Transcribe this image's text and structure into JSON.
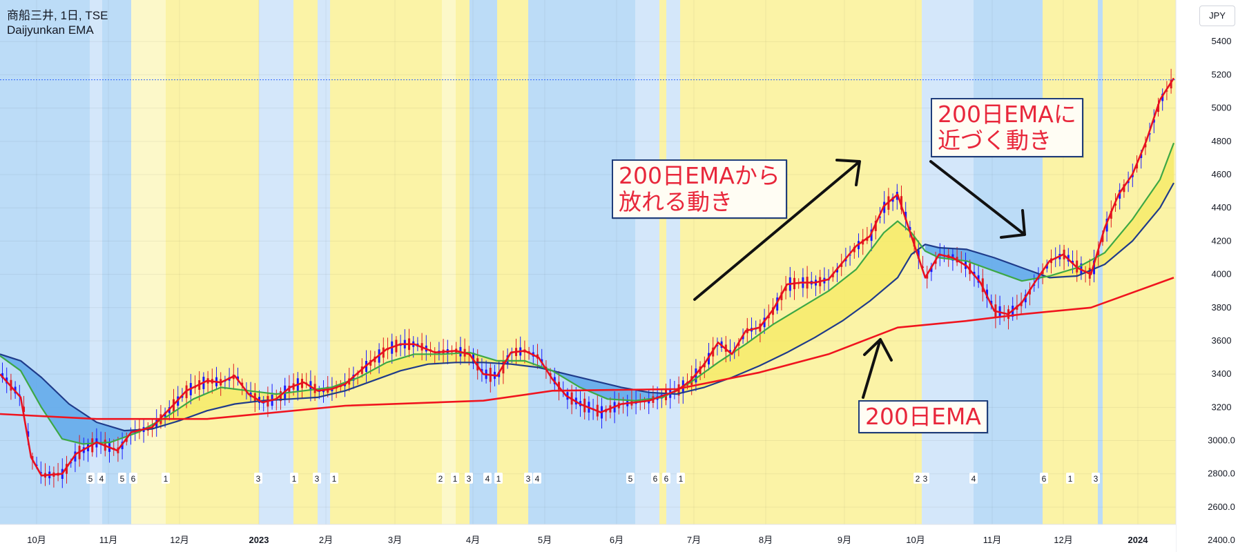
{
  "legend": {
    "title": "商船三井, 1日, TSE",
    "indicator": "Daijyunkan EMA"
  },
  "currency_button": "JPY",
  "annotations": {
    "callout_1": "200日EMAから\n放れる動き",
    "callout_2": "200日EMAに\n近づく動き",
    "callout_3": "200日EMA"
  },
  "chart_data": {
    "type": "line",
    "price_axis": {
      "ticks": [
        "5400",
        "5200",
        "5000",
        "4800",
        "4600",
        "4400",
        "4200",
        "4000",
        "3800",
        "3600",
        "3400",
        "3200",
        "3000.0",
        "2800.0",
        "2600.0",
        "2400.0"
      ],
      "range": [
        2330,
        5650
      ],
      "last_price": 5170
    },
    "time_axis": {
      "ticks": [
        "10月",
        "11月",
        "12月",
        "2023",
        "2月",
        "3月",
        "4月",
        "5月",
        "6月",
        "7月",
        "8月",
        "9月",
        "10月",
        "11月",
        "12月",
        "2024"
      ]
    },
    "stage_labels": [
      "5",
      "4",
      "5",
      "6",
      "1",
      "3",
      "1",
      "3",
      "1",
      "2",
      "1",
      "3",
      "4",
      "1",
      "3",
      "4",
      "5",
      "6",
      "6",
      "1",
      "2",
      "3",
      "4",
      "6",
      "1",
      "3"
    ],
    "series": [
      {
        "name": "EMA200",
        "color": "#f0141e",
        "points": [
          [
            0,
            3160
          ],
          [
            140,
            3130
          ],
          [
            300,
            3130
          ],
          [
            500,
            3210
          ],
          [
            700,
            3240
          ],
          [
            800,
            3300
          ],
          [
            980,
            3310
          ],
          [
            1100,
            3410
          ],
          [
            1200,
            3520
          ],
          [
            1300,
            3680
          ],
          [
            1400,
            3720
          ],
          [
            1480,
            3760
          ],
          [
            1580,
            3800
          ],
          [
            1700,
            3980
          ]
        ]
      },
      {
        "name": "EMA5",
        "color": "#e8101f",
        "points": [
          [
            0,
            3400
          ],
          [
            30,
            3260
          ],
          [
            45,
            2900
          ],
          [
            60,
            2790
          ],
          [
            90,
            2800
          ],
          [
            110,
            2920
          ],
          [
            140,
            2990
          ],
          [
            170,
            2940
          ],
          [
            190,
            3050
          ],
          [
            220,
            3080
          ],
          [
            250,
            3210
          ],
          [
            270,
            3300
          ],
          [
            300,
            3360
          ],
          [
            320,
            3350
          ],
          [
            340,
            3390
          ],
          [
            360,
            3280
          ],
          [
            380,
            3230
          ],
          [
            400,
            3250
          ],
          [
            420,
            3320
          ],
          [
            440,
            3350
          ],
          [
            460,
            3300
          ],
          [
            480,
            3310
          ],
          [
            500,
            3340
          ],
          [
            530,
            3450
          ],
          [
            560,
            3550
          ],
          [
            580,
            3580
          ],
          [
            600,
            3580
          ],
          [
            630,
            3530
          ],
          [
            660,
            3540
          ],
          [
            680,
            3520
          ],
          [
            700,
            3400
          ],
          [
            720,
            3390
          ],
          [
            740,
            3530
          ],
          [
            760,
            3540
          ],
          [
            780,
            3500
          ],
          [
            800,
            3370
          ],
          [
            820,
            3270
          ],
          [
            840,
            3220
          ],
          [
            870,
            3170
          ],
          [
            900,
            3220
          ],
          [
            940,
            3240
          ],
          [
            980,
            3300
          ],
          [
            1000,
            3360
          ],
          [
            1020,
            3460
          ],
          [
            1040,
            3590
          ],
          [
            1060,
            3520
          ],
          [
            1080,
            3660
          ],
          [
            1100,
            3680
          ],
          [
            1120,
            3790
          ],
          [
            1140,
            3940
          ],
          [
            1160,
            3950
          ],
          [
            1180,
            3950
          ],
          [
            1200,
            3970
          ],
          [
            1220,
            4070
          ],
          [
            1240,
            4170
          ],
          [
            1260,
            4230
          ],
          [
            1280,
            4410
          ],
          [
            1300,
            4480
          ],
          [
            1320,
            4230
          ],
          [
            1340,
            3980
          ],
          [
            1360,
            4120
          ],
          [
            1380,
            4100
          ],
          [
            1400,
            4050
          ],
          [
            1420,
            3950
          ],
          [
            1440,
            3780
          ],
          [
            1460,
            3760
          ],
          [
            1480,
            3830
          ],
          [
            1500,
            3960
          ],
          [
            1520,
            4080
          ],
          [
            1540,
            4120
          ],
          [
            1560,
            4040
          ],
          [
            1580,
            4000
          ],
          [
            1600,
            4280
          ],
          [
            1620,
            4480
          ],
          [
            1640,
            4600
          ],
          [
            1660,
            4800
          ],
          [
            1680,
            5050
          ],
          [
            1700,
            5180
          ]
        ]
      },
      {
        "name": "EMA20",
        "color": "#3da845",
        "points": [
          [
            0,
            3510
          ],
          [
            30,
            3420
          ],
          [
            60,
            3200
          ],
          [
            90,
            3010
          ],
          [
            120,
            2980
          ],
          [
            160,
            2990
          ],
          [
            200,
            3050
          ],
          [
            240,
            3140
          ],
          [
            280,
            3250
          ],
          [
            320,
            3320
          ],
          [
            360,
            3300
          ],
          [
            400,
            3280
          ],
          [
            440,
            3300
          ],
          [
            480,
            3320
          ],
          [
            520,
            3380
          ],
          [
            560,
            3470
          ],
          [
            600,
            3520
          ],
          [
            640,
            3520
          ],
          [
            680,
            3530
          ],
          [
            720,
            3480
          ],
          [
            760,
            3480
          ],
          [
            800,
            3420
          ],
          [
            840,
            3320
          ],
          [
            880,
            3250
          ],
          [
            920,
            3240
          ],
          [
            960,
            3260
          ],
          [
            1000,
            3350
          ],
          [
            1040,
            3470
          ],
          [
            1080,
            3580
          ],
          [
            1120,
            3700
          ],
          [
            1160,
            3800
          ],
          [
            1200,
            3900
          ],
          [
            1240,
            4030
          ],
          [
            1280,
            4250
          ],
          [
            1300,
            4320
          ],
          [
            1320,
            4250
          ],
          [
            1340,
            4140
          ],
          [
            1360,
            4100
          ],
          [
            1400,
            4080
          ],
          [
            1440,
            4020
          ],
          [
            1480,
            3960
          ],
          [
            1520,
            3990
          ],
          [
            1560,
            4040
          ],
          [
            1600,
            4130
          ],
          [
            1640,
            4330
          ],
          [
            1680,
            4570
          ],
          [
            1700,
            4790
          ]
        ]
      },
      {
        "name": "EMA60",
        "color": "#1f3b8a",
        "points": [
          [
            0,
            3520
          ],
          [
            30,
            3480
          ],
          [
            60,
            3380
          ],
          [
            100,
            3220
          ],
          [
            140,
            3110
          ],
          [
            180,
            3060
          ],
          [
            220,
            3070
          ],
          [
            260,
            3120
          ],
          [
            300,
            3180
          ],
          [
            340,
            3220
          ],
          [
            380,
            3240
          ],
          [
            420,
            3250
          ],
          [
            460,
            3260
          ],
          [
            500,
            3300
          ],
          [
            540,
            3360
          ],
          [
            580,
            3420
          ],
          [
            620,
            3460
          ],
          [
            660,
            3470
          ],
          [
            700,
            3470
          ],
          [
            740,
            3460
          ],
          [
            780,
            3440
          ],
          [
            820,
            3400
          ],
          [
            860,
            3360
          ],
          [
            900,
            3320
          ],
          [
            940,
            3290
          ],
          [
            980,
            3280
          ],
          [
            1020,
            3320
          ],
          [
            1060,
            3380
          ],
          [
            1100,
            3450
          ],
          [
            1140,
            3530
          ],
          [
            1180,
            3620
          ],
          [
            1220,
            3720
          ],
          [
            1260,
            3840
          ],
          [
            1300,
            3980
          ],
          [
            1320,
            4120
          ],
          [
            1340,
            4180
          ],
          [
            1360,
            4160
          ],
          [
            1400,
            4150
          ],
          [
            1440,
            4100
          ],
          [
            1480,
            4040
          ],
          [
            1520,
            3980
          ],
          [
            1560,
            3990
          ],
          [
            1600,
            4060
          ],
          [
            1640,
            4200
          ],
          [
            1680,
            4400
          ],
          [
            1700,
            4550
          ]
        ]
      }
    ]
  }
}
